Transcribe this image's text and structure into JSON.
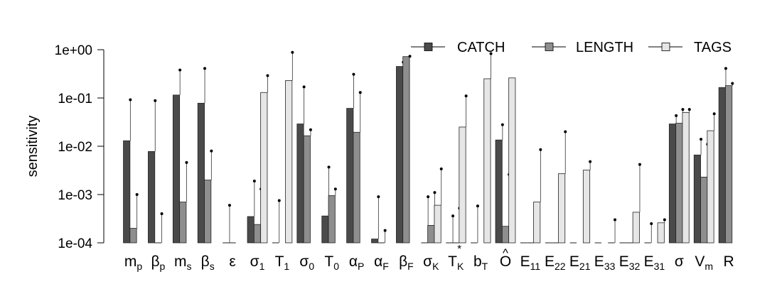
{
  "chart_data": {
    "type": "bar",
    "ylabel": "sensitivity",
    "yscale": "log",
    "ylim": [
      0.0001,
      1
    ],
    "yticks": [
      {
        "value": 1,
        "label": "1e+00"
      },
      {
        "value": 0.1,
        "label": "1e-01"
      },
      {
        "value": 0.01,
        "label": "1e-02"
      },
      {
        "value": 0.001,
        "label": "1e-03"
      },
      {
        "value": 0.0001,
        "label": "1e-04"
      }
    ],
    "legend_position": "top-right",
    "categories": [
      {
        "base": "m",
        "sub": "p"
      },
      {
        "base": "β",
        "sub": "p"
      },
      {
        "base": "m",
        "sub": "s"
      },
      {
        "base": "β",
        "sub": "s"
      },
      {
        "base": "ε"
      },
      {
        "base": "σ",
        "sub": "1"
      },
      {
        "base": "T",
        "sub": "1"
      },
      {
        "base": "σ",
        "sub": "0"
      },
      {
        "base": "T",
        "sub": "0"
      },
      {
        "base": "α",
        "sub": "P"
      },
      {
        "base": "α",
        "sub": "F"
      },
      {
        "base": "β",
        "sub": "F"
      },
      {
        "base": "σ",
        "sub": "K"
      },
      {
        "base": "T",
        "sub": "K",
        "sup": "*"
      },
      {
        "base": "b",
        "sub": "T"
      },
      {
        "base": "O",
        "accent": "^"
      },
      {
        "base": "E",
        "sub": "11"
      },
      {
        "base": "E",
        "sub": "22"
      },
      {
        "base": "E",
        "sub": "21"
      },
      {
        "base": "E",
        "sub": "33"
      },
      {
        "base": "E",
        "sub": "32"
      },
      {
        "base": "E",
        "sub": "31"
      },
      {
        "base": "σ"
      },
      {
        "base": "V",
        "sub": "m"
      },
      {
        "base": "R"
      }
    ],
    "series": [
      {
        "name": "CATCH",
        "color": "#4a4a4a",
        "values": [
          0.013,
          0.0078,
          0.115,
          0.078,
          0.0001,
          0.00035,
          0.0001,
          0.029,
          0.00036,
          0.061,
          0.00012,
          0.45,
          0.0001,
          0.0001,
          0.0001,
          0.0135,
          0.0001,
          0.0001,
          0.0001,
          0.0001,
          0.0001,
          0.0001,
          0.029,
          0.0066,
          0.165
        ],
        "upper": [
          0.092,
          0.088,
          0.38,
          0.41,
          0.0006,
          0.0019,
          0.00075,
          0.17,
          0.0037,
          0.31,
          0.0009,
          0.55,
          0.0009,
          0.00036,
          0.00058,
          0.028,
          null,
          null,
          null,
          null,
          null,
          0.00025,
          0.043,
          0.014,
          0.41
        ]
      },
      {
        "name": "LENGTH",
        "color": "#8e8e8e",
        "values": [
          0.0002,
          0.0001,
          0.0007,
          0.002,
          0.0001,
          0.00024,
          null,
          0.0165,
          0.00095,
          0.0195,
          0.0001,
          0.72,
          0.00023,
          0.0001,
          null,
          0.00022,
          0.0001,
          0.0001,
          null,
          null,
          0.0001,
          null,
          0.03,
          0.0023,
          0.18
        ],
        "upper": [
          0.001,
          0.0004,
          0.0046,
          0.008,
          null,
          0.0013,
          null,
          0.022,
          0.0013,
          0.13,
          0.00018,
          0.73,
          0.0011,
          0.00052,
          null,
          0.0026,
          null,
          null,
          null,
          null,
          null,
          null,
          0.058,
          0.011,
          0.2
        ]
      },
      {
        "name": "TAGS",
        "color": "#e6e6e6",
        "values": [
          null,
          null,
          null,
          null,
          null,
          0.13,
          0.23,
          null,
          null,
          null,
          null,
          null,
          0.0006,
          0.025,
          0.25,
          0.26,
          0.0007,
          0.0027,
          0.0032,
          0.0001,
          0.00043,
          0.00026,
          0.05,
          0.021,
          null
        ],
        "upper": [
          null,
          null,
          null,
          null,
          null,
          0.29,
          0.88,
          null,
          null,
          null,
          null,
          null,
          0.0034,
          0.11,
          0.83,
          null,
          0.0085,
          0.02,
          0.0048,
          0.0003,
          0.0042,
          0.0003,
          0.058,
          0.047,
          null
        ]
      }
    ]
  }
}
